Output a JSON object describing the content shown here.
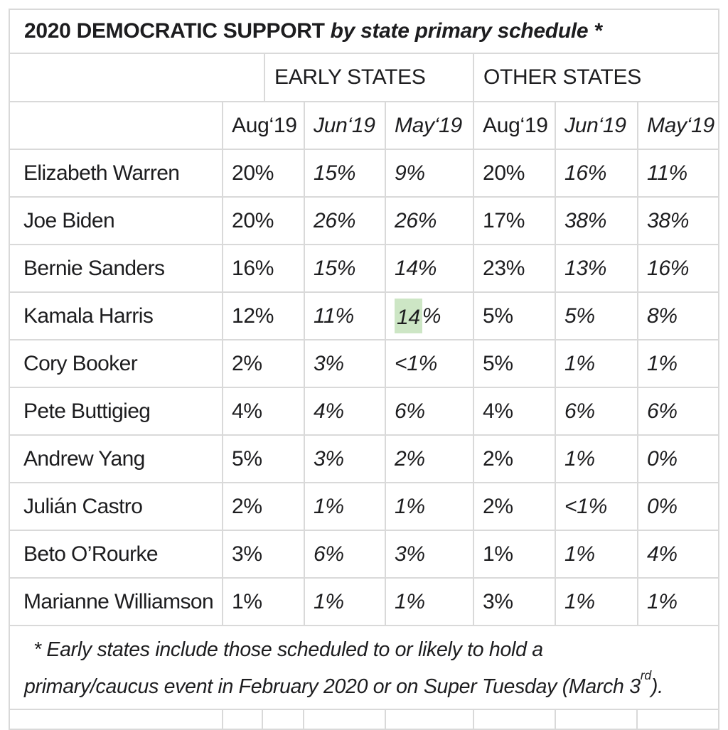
{
  "chart_data": {
    "type": "table",
    "title": "2020 DEMOCRATIC SUPPORT by state primary schedule *",
    "column_groups": [
      "EARLY STATES",
      "OTHER STATES"
    ],
    "columns": [
      "Aug‘19",
      "Jun‘19",
      "May‘19",
      "Aug‘19",
      "Jun‘19",
      "May‘19"
    ],
    "rows": [
      {
        "name": "Elizabeth Warren",
        "values": [
          "20%",
          "15%",
          "9%",
          "20%",
          "16%",
          "11%"
        ]
      },
      {
        "name": "Joe Biden",
        "values": [
          "20%",
          "26%",
          "26%",
          "17%",
          "38%",
          "38%"
        ]
      },
      {
        "name": "Bernie Sanders",
        "values": [
          "16%",
          "15%",
          "14%",
          "23%",
          "13%",
          "16%"
        ]
      },
      {
        "name": "Kamala Harris",
        "values": [
          "12%",
          "11%",
          "14%",
          "5%",
          "5%",
          "8%"
        ]
      },
      {
        "name": "Cory Booker",
        "values": [
          "2%",
          "3%",
          "<1%",
          "5%",
          "1%",
          "1%"
        ]
      },
      {
        "name": "Pete Buttigieg",
        "values": [
          "4%",
          "4%",
          "6%",
          "4%",
          "6%",
          "6%"
        ]
      },
      {
        "name": "Andrew Yang",
        "values": [
          "5%",
          "3%",
          "2%",
          "2%",
          "1%",
          "0%"
        ]
      },
      {
        "name": "Julián Castro",
        "values": [
          "2%",
          "1%",
          "1%",
          "2%",
          "<1%",
          "0%"
        ]
      },
      {
        "name": "Beto O’Rourke",
        "values": [
          "3%",
          "6%",
          "3%",
          "1%",
          "1%",
          "4%"
        ]
      },
      {
        "name": "Marianne Williamson",
        "values": [
          "1%",
          "1%",
          "1%",
          "3%",
          "1%",
          "1%"
        ]
      }
    ],
    "highlighted_cell": {
      "row": "Kamala Harris",
      "column_index": 2,
      "value": "14%"
    },
    "footnote": "* Early states include those scheduled to or likely to hold a primary/caucus event in February 2020 or on Super Tuesday (March 3rd)."
  },
  "title": {
    "main": "2020 DEMOCRATIC SUPPORT",
    "italic": "by state primary schedule *"
  },
  "highlight": {
    "row_index": 3,
    "col_index": 2,
    "highlighted_text": "14",
    "rest_text": "%"
  },
  "footnote": {
    "line1": "* Early states include those scheduled to or likely to hold a",
    "line2_before_sup": "primary/caucus event in February 2020 or on Super Tuesday (March 3",
    "sup": "rd",
    "line2_after_sup": ")."
  },
  "style": {
    "italic_column_indexes": [
      1,
      2,
      4,
      5
    ],
    "colors": {
      "grid": "#d9d9d9",
      "text": "#1d1d1f",
      "highlight": "#cde6c5",
      "background": "#ffffff"
    }
  }
}
